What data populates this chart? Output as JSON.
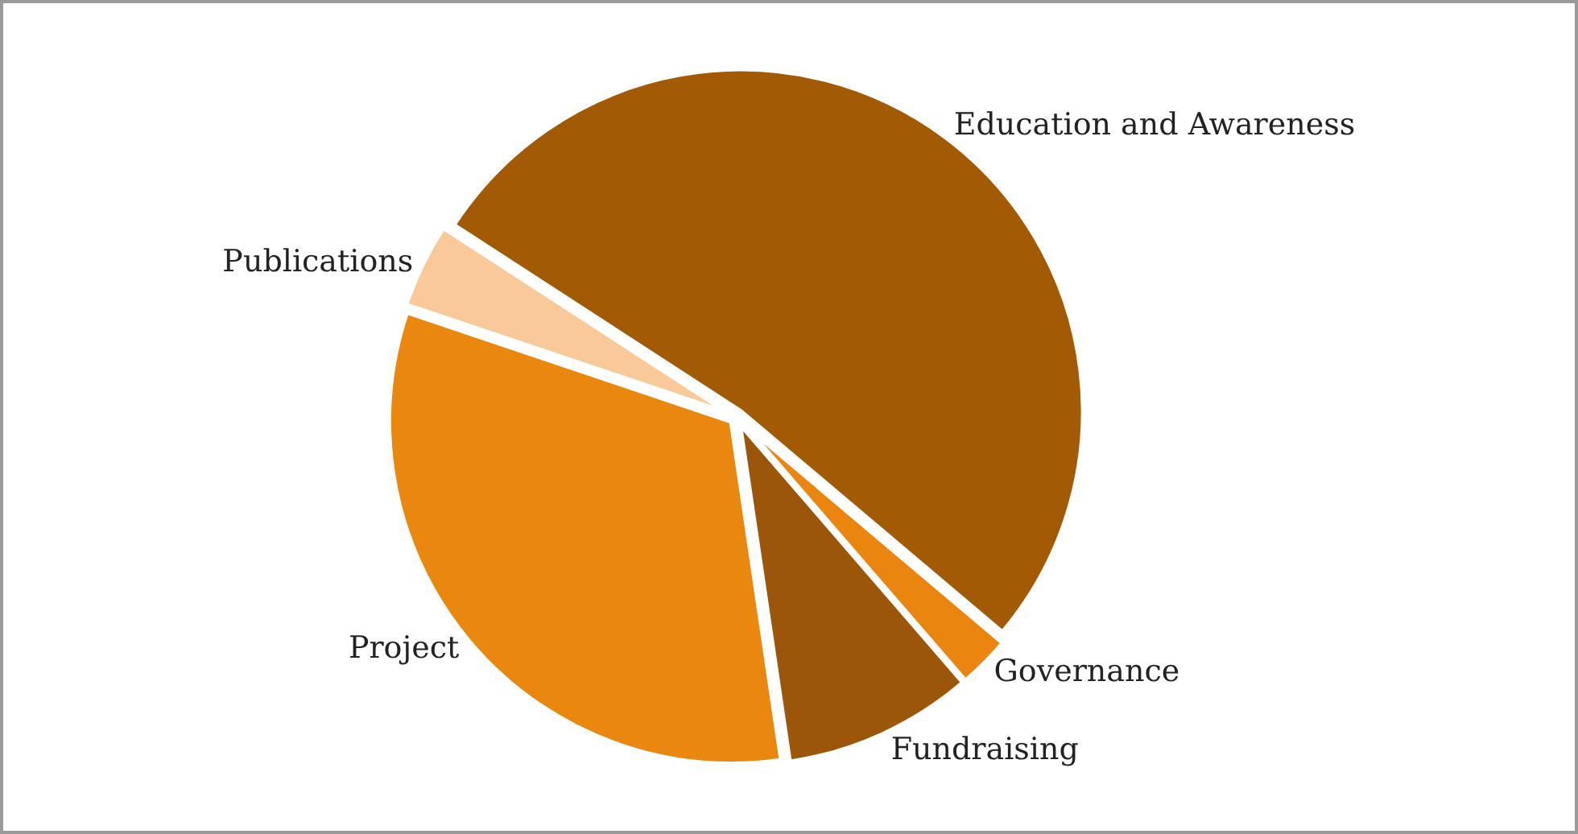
{
  "chart_data": {
    "type": "pie",
    "categories": [
      "Education and Awareness",
      "Governance",
      "Fundraising",
      "Project",
      "Publications"
    ],
    "values": [
      52,
      2.5,
      9,
      32.5,
      4
    ],
    "colors": [
      "#a35a05",
      "#ea850f",
      "#9c5609",
      "#ea870e",
      "#f9c99a"
    ],
    "legend": false
  }
}
